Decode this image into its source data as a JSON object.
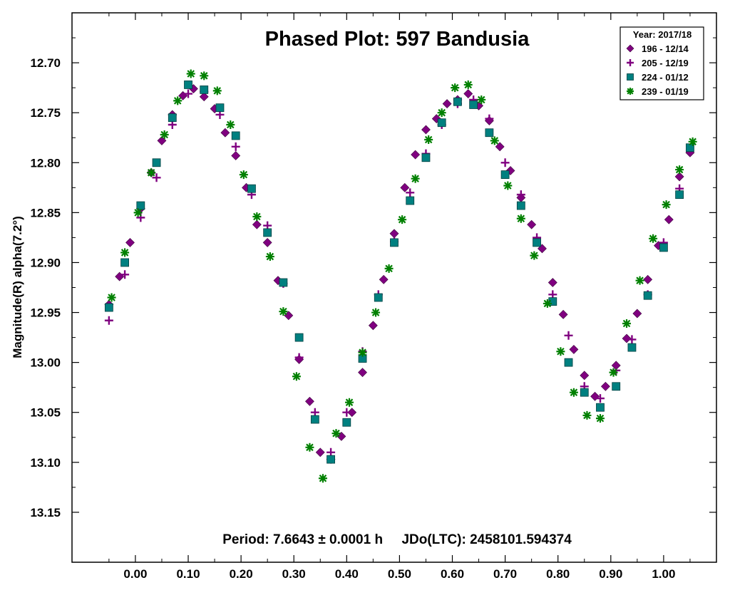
{
  "chart_data": {
    "type": "scatter",
    "title": "Phased Plot: 597 Bandusia",
    "xlabel": "",
    "ylabel": "Magnitude(R) alpha(7.2°)",
    "xlim": [
      -0.12,
      1.1
    ],
    "ylim": [
      13.2,
      12.65
    ],
    "y_inverted": true,
    "grid": false,
    "legend_position": "top-right",
    "legend_title": "Year: 2017/18",
    "annotation": "Period: 7.6643 ± 0.0001 h     JDo(LTC): 2458101.594374",
    "x_ticks": [
      0.0,
      0.1,
      0.2,
      0.3,
      0.4,
      0.5,
      0.6,
      0.7,
      0.8,
      0.9,
      1.0
    ],
    "x_tick_labels": [
      "0.00",
      "0.10",
      "0.20",
      "0.30",
      "0.40",
      "0.50",
      "0.60",
      "0.70",
      "0.80",
      "0.90",
      "1.00"
    ],
    "y_ticks": [
      12.7,
      12.75,
      12.8,
      12.85,
      12.9,
      12.95,
      13.0,
      13.05,
      13.1,
      13.15
    ],
    "y_tick_labels": [
      "12.70",
      "12.75",
      "12.80",
      "12.85",
      "12.90",
      "12.95",
      "13.00",
      "13.05",
      "13.10",
      "13.15"
    ],
    "series": [
      {
        "name": "196 - 12/14",
        "marker": "diamond",
        "color": "#800080",
        "x": [
          -0.05,
          -0.03,
          -0.01,
          0.01,
          0.03,
          0.05,
          0.07,
          0.09,
          0.11,
          0.13,
          0.15,
          0.17,
          0.19,
          0.21,
          0.23,
          0.25,
          0.27,
          0.29,
          0.31,
          0.33,
          0.35,
          0.37,
          0.39,
          0.41,
          0.43,
          0.45,
          0.47,
          0.49,
          0.51,
          0.53,
          0.55,
          0.57,
          0.59,
          0.61,
          0.63,
          0.65,
          0.67,
          0.69,
          0.71,
          0.73,
          0.75,
          0.77,
          0.79,
          0.81,
          0.83,
          0.85,
          0.87,
          0.89,
          0.91,
          0.93,
          0.95,
          0.97,
          0.99,
          1.01,
          1.03,
          1.05
        ],
        "y": [
          12.942,
          12.914,
          12.88,
          12.846,
          12.81,
          12.778,
          12.752,
          12.733,
          12.726,
          12.734,
          12.746,
          12.77,
          12.793,
          12.825,
          12.862,
          12.88,
          12.918,
          12.953,
          12.997,
          13.039,
          13.09,
          13.097,
          13.074,
          13.05,
          13.01,
          12.963,
          12.917,
          12.871,
          12.825,
          12.792,
          12.767,
          12.756,
          12.741,
          12.737,
          12.731,
          12.743,
          12.758,
          12.784,
          12.808,
          12.835,
          12.862,
          12.886,
          12.92,
          12.952,
          12.987,
          13.013,
          13.034,
          13.024,
          13.003,
          12.976,
          12.951,
          12.917,
          12.883,
          12.857,
          12.814,
          12.79
        ]
      },
      {
        "name": "205 - 12/19",
        "marker": "plus",
        "color": "#800080",
        "x": [
          -0.05,
          -0.02,
          0.01,
          0.04,
          0.07,
          0.1,
          0.13,
          0.16,
          0.19,
          0.22,
          0.25,
          0.28,
          0.31,
          0.34,
          0.37,
          0.4,
          0.43,
          0.46,
          0.49,
          0.52,
          0.55,
          0.58,
          0.61,
          0.64,
          0.67,
          0.7,
          0.73,
          0.76,
          0.79,
          0.82,
          0.85,
          0.88,
          0.91,
          0.94,
          0.97,
          1.0,
          1.03
        ],
        "y": [
          12.958,
          12.912,
          12.855,
          12.815,
          12.762,
          12.731,
          12.729,
          12.752,
          12.784,
          12.832,
          12.863,
          12.921,
          12.995,
          13.05,
          13.09,
          13.05,
          12.989,
          12.932,
          12.879,
          12.83,
          12.791,
          12.762,
          12.741,
          12.737,
          12.756,
          12.8,
          12.832,
          12.875,
          12.932,
          12.973,
          13.024,
          13.036,
          13.008,
          12.977,
          12.932,
          12.88,
          12.826
        ]
      },
      {
        "name": "224 - 01/12",
        "marker": "square",
        "color": "#008080",
        "x": [
          -0.05,
          -0.02,
          0.01,
          0.04,
          0.07,
          0.1,
          0.13,
          0.16,
          0.19,
          0.22,
          0.25,
          0.28,
          0.31,
          0.34,
          0.37,
          0.4,
          0.43,
          0.46,
          0.49,
          0.52,
          0.55,
          0.58,
          0.61,
          0.64,
          0.67,
          0.7,
          0.73,
          0.76,
          0.79,
          0.82,
          0.85,
          0.88,
          0.91,
          0.94,
          0.97,
          1.0,
          1.03,
          1.05
        ],
        "y": [
          12.945,
          12.9,
          12.843,
          12.8,
          12.755,
          12.722,
          12.727,
          12.745,
          12.773,
          12.826,
          12.87,
          12.92,
          12.975,
          13.057,
          13.097,
          13.06,
          12.996,
          12.935,
          12.88,
          12.838,
          12.795,
          12.76,
          12.739,
          12.742,
          12.77,
          12.812,
          12.843,
          12.88,
          12.939,
          13.0,
          13.03,
          13.045,
          13.024,
          12.985,
          12.933,
          12.885,
          12.832,
          12.785
        ]
      },
      {
        "name": "239 - 01/19",
        "marker": "asterisk",
        "color": "#008000",
        "x": [
          -0.045,
          -0.02,
          0.005,
          0.03,
          0.055,
          0.08,
          0.105,
          0.13,
          0.155,
          0.18,
          0.205,
          0.23,
          0.255,
          0.28,
          0.305,
          0.33,
          0.355,
          0.38,
          0.405,
          0.43,
          0.455,
          0.48,
          0.505,
          0.53,
          0.555,
          0.58,
          0.605,
          0.63,
          0.655,
          0.68,
          0.705,
          0.73,
          0.755,
          0.78,
          0.805,
          0.83,
          0.855,
          0.88,
          0.905,
          0.93,
          0.955,
          0.98,
          1.005,
          1.03,
          1.055
        ],
        "y": [
          12.935,
          12.89,
          12.85,
          12.81,
          12.772,
          12.738,
          12.711,
          12.713,
          12.728,
          12.762,
          12.812,
          12.854,
          12.894,
          12.949,
          13.014,
          13.085,
          13.116,
          13.071,
          13.04,
          12.99,
          12.95,
          12.906,
          12.857,
          12.816,
          12.777,
          12.75,
          12.725,
          12.722,
          12.737,
          12.778,
          12.823,
          12.856,
          12.893,
          12.941,
          12.989,
          13.03,
          13.053,
          13.056,
          13.01,
          12.961,
          12.918,
          12.876,
          12.842,
          12.807,
          12.779
        ]
      }
    ]
  }
}
